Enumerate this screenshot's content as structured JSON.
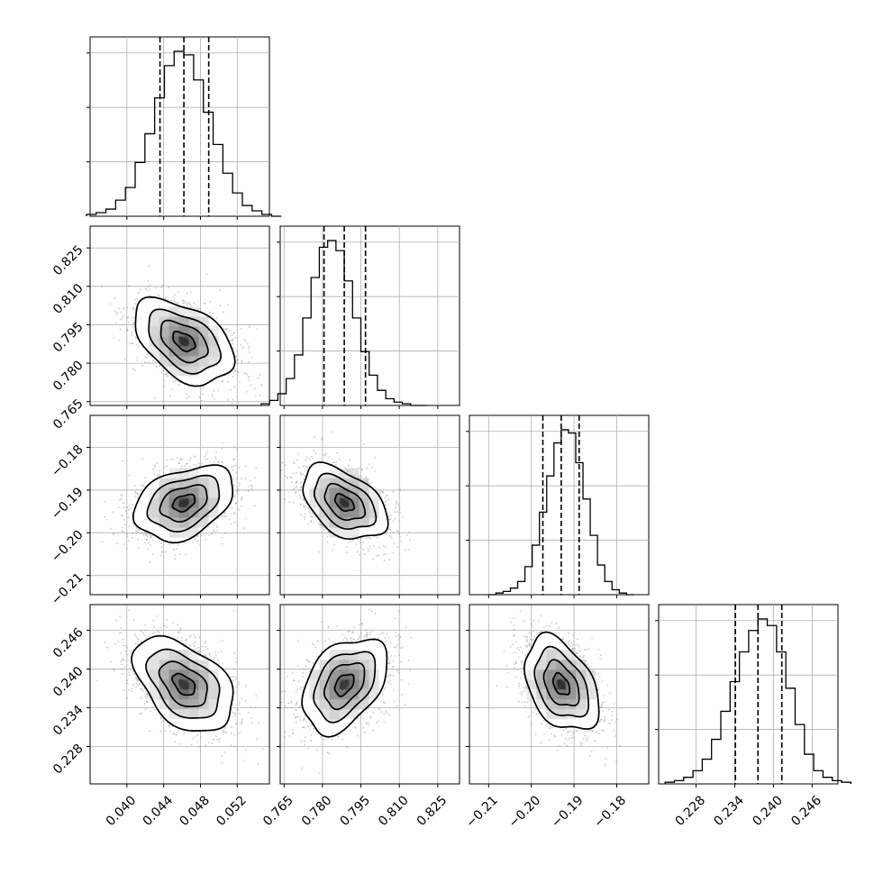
{
  "chart_data": {
    "type": "corner",
    "title": "",
    "parameters": [
      {
        "ticks": [
          0.04,
          0.044,
          0.048,
          0.052
        ],
        "tick_labels": [
          "0.040",
          "0.044",
          "0.048",
          "0.052"
        ],
        "range": [
          0.036,
          0.0555
        ]
      },
      {
        "ticks": [
          0.765,
          0.78,
          0.795,
          0.81,
          0.825
        ],
        "tick_labels": [
          "0.765",
          "0.780",
          "0.795",
          "0.810",
          "0.825"
        ],
        "range": [
          0.7635,
          0.8335
        ]
      },
      {
        "ticks": [
          -0.21,
          -0.2,
          -0.19,
          -0.18
        ],
        "tick_labels": [
          "−0.21",
          "−0.20",
          "−0.19",
          "−0.18"
        ],
        "range": [
          -0.2145,
          -0.1725
        ]
      },
      {
        "ticks": [
          0.228,
          0.234,
          0.24,
          0.246
        ],
        "tick_labels": [
          "0.228",
          "0.234",
          "0.240",
          "0.246"
        ],
        "range": [
          0.2222,
          0.25
        ]
      }
    ],
    "quantiles": [
      [
        0.0436,
        0.0462,
        0.0489
      ],
      [
        0.7806,
        0.7885,
        0.7968
      ],
      [
        -0.1973,
        -0.193,
        -0.1888
      ],
      [
        0.2341,
        0.2376,
        0.2413
      ]
    ],
    "histograms": [
      [
        1,
        2,
        4,
        9,
        16,
        30,
        46,
        66,
        84,
        92,
        90,
        76,
        58,
        40,
        24,
        13,
        6,
        3,
        1,
        0
      ],
      [
        1,
        3,
        7,
        16,
        30,
        52,
        76,
        94,
        98,
        92,
        74,
        52,
        32,
        18,
        9,
        4,
        2,
        1,
        0,
        0
      ],
      [
        0,
        1,
        2,
        4,
        8,
        17,
        30,
        50,
        72,
        92,
        100,
        98,
        80,
        58,
        36,
        18,
        8,
        3,
        1,
        0
      ],
      [
        1,
        2,
        4,
        8,
        15,
        27,
        44,
        62,
        80,
        93,
        100,
        96,
        80,
        58,
        36,
        18,
        8,
        4,
        2,
        1
      ]
    ],
    "contour_levels": [
      0.118,
      0.393,
      0.675,
      0.865
    ],
    "grid": true,
    "legend": "none"
  }
}
